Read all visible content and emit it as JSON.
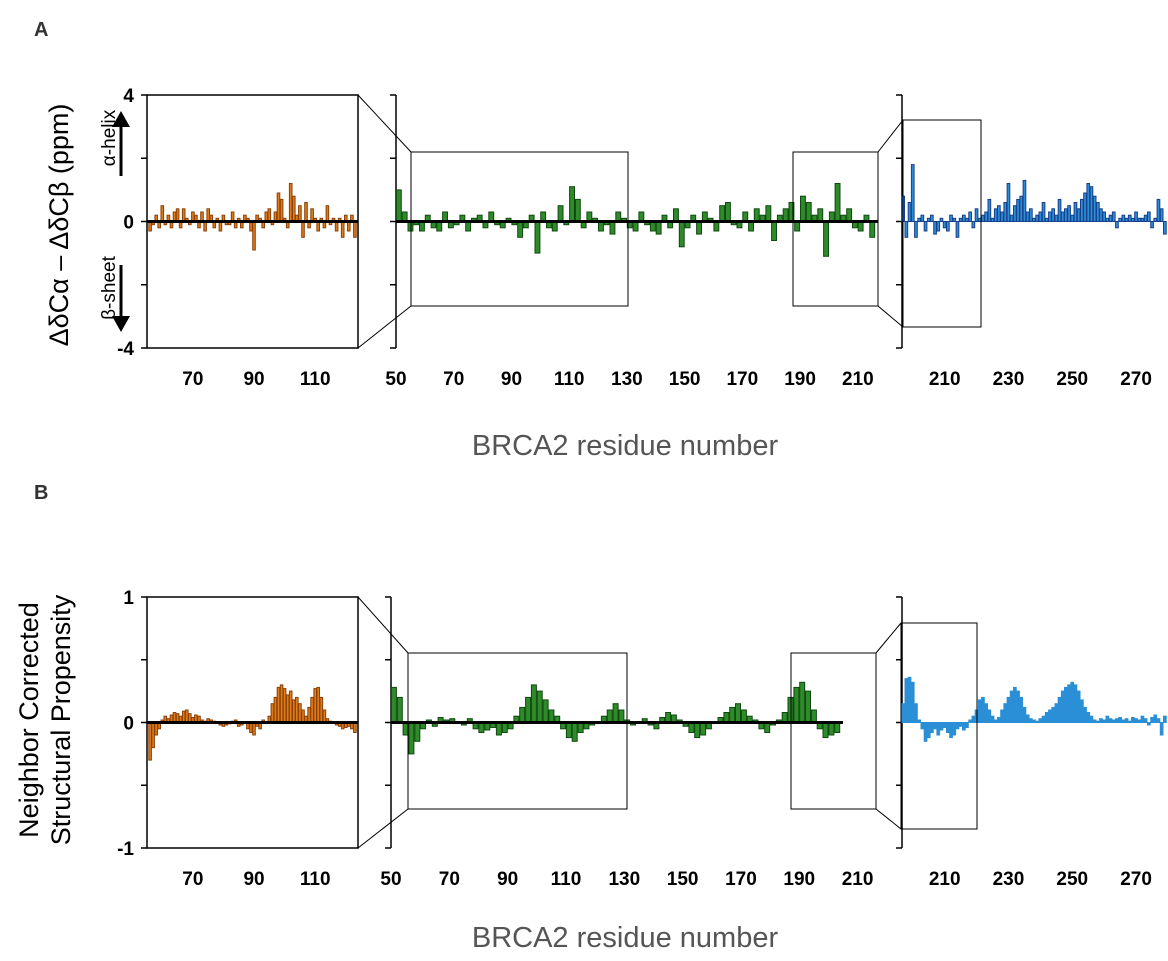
{
  "figure": {
    "panel_labels": [
      "A",
      "B"
    ],
    "xlabel": "BRCA2 residue number"
  },
  "chart_data": [
    {
      "panel": "A",
      "type": "bar",
      "ylabel": "ΔδCα – ΔδCβ (ppm)",
      "annotations": [
        "α-helix",
        "β-sheet"
      ],
      "ylim": [
        -4,
        4
      ],
      "yticks": [
        "4",
        "0",
        "-4"
      ],
      "subplots": [
        {
          "color": "#e07b1a",
          "edge": "#8a4006",
          "xlim": [
            55,
            124
          ],
          "xticks": [
            70,
            90,
            110
          ],
          "x": [
            56,
            57,
            58,
            59,
            60,
            61,
            62,
            63,
            64,
            65,
            66,
            67,
            68,
            69,
            70,
            71,
            72,
            73,
            74,
            75,
            76,
            77,
            78,
            79,
            80,
            81,
            82,
            83,
            84,
            85,
            86,
            87,
            88,
            89,
            90,
            91,
            92,
            93,
            94,
            95,
            96,
            97,
            98,
            99,
            100,
            101,
            102,
            103,
            104,
            105,
            106,
            107,
            108,
            109,
            110,
            111,
            112,
            113,
            114,
            115,
            116,
            117,
            118,
            119,
            120,
            121,
            122,
            123
          ],
          "values": [
            -0.3,
            -0.1,
            0.2,
            -0.2,
            0.5,
            -0.1,
            0.2,
            -0.2,
            0.3,
            0.4,
            -0.2,
            0.4,
            0.1,
            -0.1,
            0.3,
            0.2,
            -0.2,
            0.3,
            -0.3,
            0.4,
            0.2,
            -0.2,
            0.1,
            -0.3,
            0.2,
            -0.1,
            -0.1,
            0.3,
            -0.2,
            0.1,
            -0.2,
            0.2,
            0.1,
            -0.3,
            -0.9,
            0.2,
            0.1,
            -0.2,
            0.3,
            0.4,
            -0.1,
            0.3,
            0.9,
            0.7,
            0.1,
            -0.2,
            1.2,
            0.8,
            0.2,
            0.5,
            -0.5,
            0.6,
            -0.2,
            0.4,
            0.1,
            -0.3,
            0.1,
            -0.2,
            0.5,
            -0.1,
            0.1,
            -0.3,
            0.1,
            -0.5,
            0.2,
            -0.3,
            0.2,
            -0.5
          ]
        },
        {
          "color": "#2f8a2a",
          "edge": "#0f4a10",
          "xlim": [
            50,
            217
          ],
          "xticks": [
            50,
            70,
            90,
            110,
            130,
            150,
            170,
            190,
            210
          ],
          "x": [
            51,
            53,
            55,
            57,
            59,
            61,
            63,
            65,
            67,
            69,
            71,
            73,
            75,
            77,
            79,
            81,
            83,
            85,
            87,
            89,
            91,
            93,
            95,
            97,
            99,
            101,
            103,
            105,
            107,
            109,
            111,
            113,
            115,
            117,
            119,
            121,
            123,
            125,
            127,
            129,
            131,
            133,
            135,
            137,
            139,
            141,
            143,
            145,
            147,
            149,
            151,
            153,
            155,
            157,
            159,
            161,
            163,
            165,
            167,
            169,
            171,
            173,
            175,
            177,
            179,
            181,
            183,
            185,
            187,
            189,
            191,
            193,
            195,
            197,
            199,
            201,
            203,
            205,
            207,
            209,
            211,
            213,
            215
          ],
          "values": [
            1.0,
            0.3,
            -0.3,
            -0.1,
            -0.3,
            0.2,
            -0.2,
            -0.3,
            0.3,
            -0.2,
            -0.1,
            0.2,
            -0.3,
            0.1,
            0.2,
            -0.2,
            0.3,
            -0.1,
            -0.2,
            0.1,
            -0.1,
            -0.5,
            -0.2,
            0.2,
            -1.0,
            0.3,
            -0.2,
            -0.3,
            0.5,
            -0.1,
            1.1,
            0.7,
            -0.2,
            0.3,
            0.1,
            -0.3,
            -0.1,
            -0.4,
            0.3,
            0.1,
            -0.2,
            -0.3,
            0.3,
            -0.1,
            -0.3,
            -0.4,
            0.2,
            -0.2,
            0.4,
            -0.8,
            -0.2,
            0.2,
            -0.4,
            0.3,
            0.1,
            -0.3,
            0.5,
            0.6,
            -0.1,
            -0.2,
            0.3,
            -0.3,
            0.4,
            0.2,
            0.5,
            -0.6,
            0.2,
            0.4,
            0.6,
            -0.3,
            0.8,
            0.6,
            0.2,
            0.4,
            -1.1,
            0.3,
            1.2,
            0.2,
            0.4,
            -0.2,
            -0.3,
            0.2,
            -0.5
          ]
        },
        {
          "color": "#2b8fd6",
          "edge": "#1a3f8c",
          "xlim": [
            196,
            280
          ],
          "xticks": [
            210,
            230,
            250,
            270
          ],
          "x": [
            197,
            198,
            199,
            200,
            201,
            202,
            203,
            204,
            205,
            206,
            207,
            208,
            209,
            210,
            211,
            212,
            213,
            214,
            215,
            216,
            217,
            218,
            219,
            220,
            221,
            222,
            223,
            224,
            225,
            226,
            227,
            228,
            229,
            230,
            231,
            232,
            233,
            234,
            235,
            236,
            237,
            238,
            239,
            240,
            241,
            242,
            243,
            244,
            245,
            246,
            247,
            248,
            249,
            250,
            251,
            252,
            253,
            254,
            255,
            256,
            257,
            258,
            259,
            260,
            261,
            262,
            263,
            264,
            265,
            266,
            267,
            268,
            269,
            270,
            271,
            272,
            273,
            274,
            275,
            276,
            277,
            278,
            279
          ],
          "values": [
            0.8,
            -0.5,
            0.6,
            1.8,
            -0.5,
            0.1,
            0.2,
            -0.3,
            0.1,
            0.2,
            -0.4,
            -0.3,
            0.1,
            -0.2,
            -0.3,
            0.2,
            0.1,
            -0.5,
            0.1,
            0.2,
            0.1,
            0.3,
            -0.2,
            0.4,
            0.1,
            0.2,
            0.3,
            0.7,
            0.1,
            0.4,
            0.5,
            0.3,
            0.6,
            1.2,
            0.2,
            0.5,
            0.7,
            0.8,
            1.3,
            0.3,
            0.4,
            0.1,
            0.2,
            0.3,
            0.6,
            0.1,
            0.3,
            0.4,
            0.2,
            0.7,
            0.3,
            0.4,
            0.5,
            0.2,
            0.6,
            0.4,
            0.7,
            0.9,
            1.2,
            1.1,
            0.8,
            0.6,
            0.4,
            0.3,
            0.1,
            0.2,
            0.3,
            -0.2,
            0.1,
            0.2,
            0.1,
            0.2,
            0.1,
            0.3,
            0.1,
            0.1,
            0.2,
            0.3,
            -0.2,
            0.1,
            0.7,
            0.4,
            -0.4
          ]
        }
      ]
    },
    {
      "panel": "B",
      "type": "bar",
      "ylabel": [
        "Neighbor Corrected",
        "Structural Propensity"
      ],
      "ylim": [
        -1,
        1
      ],
      "yticks": [
        "1",
        "0",
        "-1"
      ],
      "subplots": [
        {
          "color": "#e07b1a",
          "edge": "#8a4006",
          "xlim": [
            55,
            124
          ],
          "xticks": [
            70,
            90,
            110
          ],
          "x": [
            56,
            57,
            58,
            59,
            60,
            61,
            62,
            63,
            64,
            65,
            66,
            67,
            68,
            69,
            70,
            71,
            72,
            73,
            74,
            75,
            76,
            77,
            78,
            79,
            80,
            81,
            82,
            83,
            84,
            85,
            86,
            87,
            88,
            89,
            90,
            91,
            92,
            93,
            94,
            95,
            96,
            97,
            98,
            99,
            100,
            101,
            102,
            103,
            104,
            105,
            106,
            107,
            108,
            109,
            110,
            111,
            112,
            113,
            114,
            115,
            116,
            117,
            118,
            119,
            120,
            121,
            122,
            123
          ],
          "values": [
            -0.3,
            -0.2,
            -0.1,
            -0.05,
            0.02,
            0.05,
            0.03,
            0.06,
            0.08,
            0.07,
            0.05,
            0.09,
            0.1,
            0.07,
            0.04,
            0.06,
            0.05,
            0.02,
            0.01,
            0.03,
            0.02,
            0.01,
            0.0,
            -0.02,
            -0.03,
            -0.02,
            -0.01,
            0.01,
            0.02,
            -0.03,
            -0.02,
            0.0,
            -0.05,
            -0.08,
            -0.1,
            -0.03,
            -0.05,
            0.02,
            0.0,
            0.05,
            0.15,
            0.2,
            0.28,
            0.3,
            0.27,
            0.22,
            0.25,
            0.18,
            0.2,
            0.15,
            0.1,
            0.05,
            0.12,
            0.2,
            0.27,
            0.28,
            0.2,
            0.1,
            0.03,
            0.01,
            0.0,
            -0.02,
            -0.03,
            -0.05,
            -0.04,
            -0.03,
            -0.05,
            -0.08
          ]
        },
        {
          "color": "#2f8a2a",
          "edge": "#0f4a10",
          "xlim": [
            50,
            217
          ],
          "xticks": [
            50,
            70,
            90,
            110,
            130,
            150,
            170,
            190,
            210
          ],
          "x": [
            51,
            53,
            55,
            57,
            59,
            61,
            63,
            65,
            67,
            69,
            71,
            73,
            75,
            77,
            79,
            81,
            83,
            85,
            87,
            89,
            91,
            93,
            95,
            97,
            99,
            101,
            103,
            105,
            107,
            109,
            111,
            113,
            115,
            117,
            119,
            121,
            123,
            125,
            127,
            129,
            131,
            133,
            135,
            137,
            139,
            141,
            143,
            145,
            147,
            149,
            151,
            153,
            155,
            157,
            159,
            161,
            163,
            165,
            167,
            169,
            171,
            173,
            175,
            177,
            179,
            181,
            183,
            185,
            187,
            189,
            191,
            193,
            195,
            197,
            199,
            201,
            203
          ],
          "values": [
            0.28,
            0.2,
            -0.1,
            -0.25,
            -0.15,
            -0.05,
            0.02,
            -0.03,
            0.04,
            0.02,
            0.03,
            0.0,
            -0.02,
            0.03,
            -0.05,
            -0.08,
            -0.06,
            -0.04,
            -0.1,
            -0.08,
            -0.05,
            0.05,
            0.12,
            0.2,
            0.3,
            0.25,
            0.18,
            0.1,
            0.05,
            -0.05,
            -0.12,
            -0.15,
            -0.08,
            -0.05,
            -0.02,
            0.0,
            0.05,
            0.1,
            0.15,
            0.1,
            0.02,
            -0.02,
            0.0,
            0.03,
            -0.02,
            -0.05,
            0.04,
            0.08,
            0.06,
            0.02,
            -0.03,
            -0.08,
            -0.12,
            -0.1,
            -0.05,
            0.0,
            0.04,
            0.08,
            0.12,
            0.15,
            0.1,
            0.05,
            0.02,
            -0.05,
            -0.08,
            -0.02,
            0.02,
            0.08,
            0.2,
            0.28,
            0.32,
            0.25,
            0.1,
            -0.05,
            -0.12,
            -0.1,
            -0.08
          ]
        },
        {
          "color": "#2b8fd6",
          "edge": "#2b8fd6",
          "xlim": [
            196,
            280
          ],
          "xticks": [
            210,
            230,
            250,
            270
          ],
          "x": [
            197,
            198,
            199,
            200,
            201,
            202,
            203,
            204,
            205,
            206,
            207,
            208,
            209,
            210,
            211,
            212,
            213,
            214,
            215,
            216,
            217,
            218,
            219,
            220,
            221,
            222,
            223,
            224,
            225,
            226,
            227,
            228,
            229,
            230,
            231,
            232,
            233,
            234,
            235,
            236,
            237,
            238,
            239,
            240,
            241,
            242,
            243,
            244,
            245,
            246,
            247,
            248,
            249,
            250,
            251,
            252,
            253,
            254,
            255,
            256,
            257,
            258,
            259,
            260,
            261,
            262,
            263,
            264,
            265,
            266,
            267,
            268,
            269,
            270,
            271,
            272,
            273,
            274,
            275,
            276,
            277,
            278,
            279
          ],
          "values": [
            0.15,
            0.35,
            0.36,
            0.32,
            0.15,
            0.02,
            -0.05,
            -0.15,
            -0.12,
            -0.08,
            -0.05,
            -0.1,
            -0.06,
            -0.04,
            -0.08,
            -0.12,
            -0.1,
            -0.05,
            -0.03,
            -0.06,
            -0.04,
            0.02,
            0.05,
            0.1,
            0.18,
            0.2,
            0.15,
            0.1,
            0.05,
            0.02,
            0.04,
            0.1,
            0.15,
            0.2,
            0.25,
            0.28,
            0.25,
            0.2,
            0.12,
            0.06,
            0.03,
            0.02,
            0.01,
            0.03,
            0.05,
            0.08,
            0.1,
            0.12,
            0.15,
            0.2,
            0.25,
            0.28,
            0.3,
            0.32,
            0.3,
            0.25,
            0.18,
            0.12,
            0.08,
            0.05,
            0.02,
            0.01,
            0.03,
            0.02,
            0.05,
            0.03,
            0.02,
            0.03,
            0.04,
            0.02,
            0.03,
            0.01,
            0.04,
            0.03,
            0.02,
            0.05,
            0.03,
            -0.02,
            0.04,
            0.06,
            0.03,
            -0.1,
            0.05
          ]
        }
      ]
    }
  ]
}
